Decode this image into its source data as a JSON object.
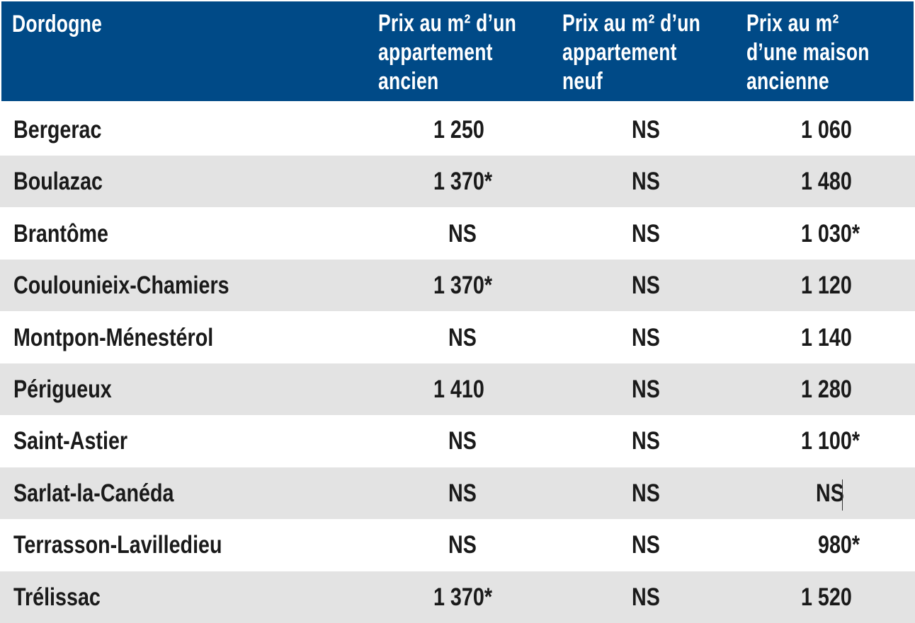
{
  "table": {
    "headers": [
      "Dordogne",
      "Prix au m² d’un\nappartement\nancien",
      "Prix au m² d’un\nappartement\nneuf",
      "Prix au m²\nd’une maison\nancienne"
    ],
    "rows": [
      {
        "commune": "Bergerac",
        "appart_ancien": "1 250",
        "appart_neuf": "NS",
        "maison_ancienne": "1 060"
      },
      {
        "commune": "Boulazac",
        "appart_ancien": "1 370*",
        "appart_neuf": "NS",
        "maison_ancienne": "1 480"
      },
      {
        "commune": "Brantôme",
        "appart_ancien": "NS",
        "appart_neuf": "NS",
        "maison_ancienne": "1 030*"
      },
      {
        "commune": "Coulounieix-Chamiers",
        "appart_ancien": "1 370*",
        "appart_neuf": "NS",
        "maison_ancienne": "1 120"
      },
      {
        "commune": "Montpon-Ménestérol",
        "appart_ancien": "NS",
        "appart_neuf": "NS",
        "maison_ancienne": "1 140"
      },
      {
        "commune": "Périgueux",
        "appart_ancien": "1 410",
        "appart_neuf": "NS",
        "maison_ancienne": "1 280"
      },
      {
        "commune": "Saint-Astier",
        "appart_ancien": "NS",
        "appart_neuf": "NS",
        "maison_ancienne": "1 100*"
      },
      {
        "commune": "Sarlat-la-Canéda",
        "appart_ancien": "NS",
        "appart_neuf": "NS",
        "maison_ancienne": "NS"
      },
      {
        "commune": "Terrasson-Lavilledieu",
        "appart_ancien": "NS",
        "appart_neuf": "NS",
        "maison_ancienne": "980*"
      },
      {
        "commune": "Trélissac",
        "appart_ancien": "1 370*",
        "appart_neuf": "NS",
        "maison_ancienne": "1 520"
      }
    ]
  },
  "colors": {
    "header_bg": "#004a87",
    "header_text": "#ffffff",
    "row_alt_bg": "#e3e3e3",
    "row_bg": "#ffffff"
  }
}
